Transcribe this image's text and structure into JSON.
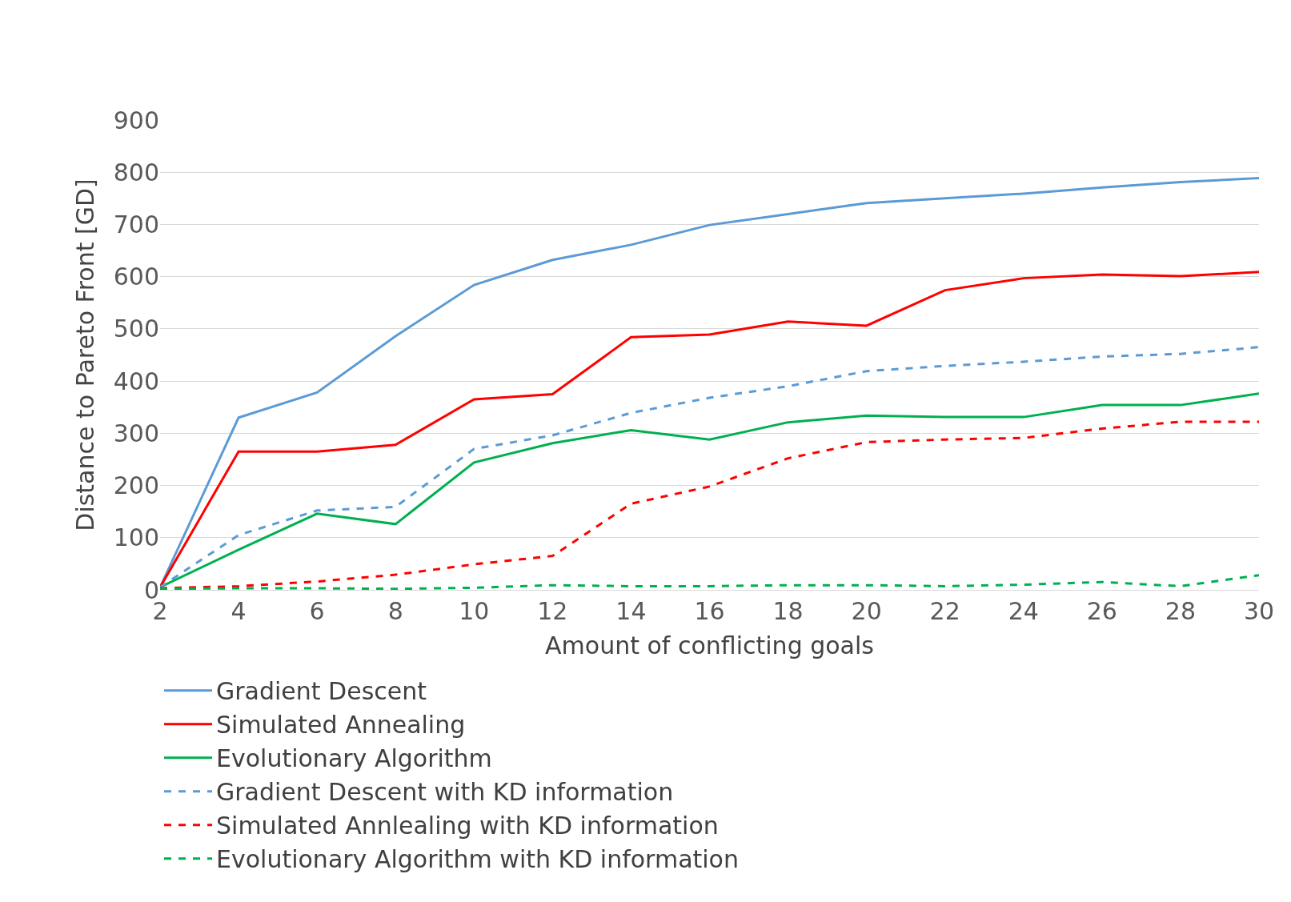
{
  "chart_data": {
    "type": "line",
    "xlabel": "Amount of conflicting goals",
    "ylabel": "Distance to Pareto Front [GD]",
    "x": [
      2,
      4,
      6,
      8,
      10,
      12,
      14,
      16,
      18,
      20,
      22,
      24,
      26,
      28,
      30
    ],
    "xlim": [
      2,
      30
    ],
    "xticks": [
      2,
      4,
      6,
      8,
      10,
      12,
      14,
      16,
      18,
      20,
      22,
      24,
      26,
      28,
      30
    ],
    "ylim": [
      0,
      900
    ],
    "yticks": [
      0,
      100,
      200,
      300,
      400,
      500,
      600,
      700,
      800,
      900
    ],
    "grid": "y",
    "legend": "bottom",
    "marker": "none",
    "series": [
      {
        "name": "Gradient Descent",
        "color": "#5b9bd5",
        "line_style": "solid",
        "values": [
          5,
          330,
          378,
          486,
          584,
          632,
          661,
          699,
          720,
          741,
          750,
          759,
          771,
          781,
          789
        ]
      },
      {
        "name": "Simulated Annealing",
        "color": "#ff0000",
        "line_style": "solid",
        "values": [
          5,
          265,
          265,
          278,
          365,
          375,
          484,
          489,
          514,
          506,
          574,
          597,
          604,
          601,
          609
        ]
      },
      {
        "name": "Evolutionary Algorithm",
        "color": "#00b050",
        "line_style": "solid",
        "values": [
          5,
          77,
          146,
          126,
          244,
          281,
          306,
          288,
          321,
          334,
          331,
          331,
          354,
          354,
          376
        ]
      },
      {
        "name": "Gradient Descent with KD information",
        "color": "#5b9bd5",
        "line_style": "dashed",
        "values": [
          5,
          105,
          152,
          159,
          270,
          296,
          339,
          368,
          390,
          419,
          429,
          437,
          447,
          452,
          465
        ]
      },
      {
        "name": "Simulated Annlealing with KD information",
        "color": "#ff0000",
        "line_style": "dashed",
        "values": [
          3,
          7,
          16,
          29,
          49,
          65,
          165,
          198,
          252,
          283,
          288,
          291,
          309,
          322,
          322
        ]
      },
      {
        "name": "Evolutionary Algorithm with KD information",
        "color": "#00b050",
        "line_style": "dashed",
        "values": [
          2,
          3,
          3,
          2,
          4,
          9,
          7,
          7,
          9,
          9,
          7,
          10,
          15,
          7,
          28
        ]
      }
    ]
  }
}
